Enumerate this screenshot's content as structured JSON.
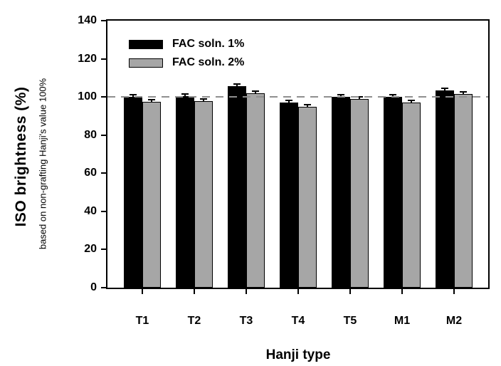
{
  "chart_data": {
    "type": "bar",
    "title": "",
    "xlabel": "Hanji type",
    "ylabel": "ISO brightness (%)",
    "ylabel_sub": "based on non-grafting Hanji's value 100%",
    "categories": [
      "T1",
      "T2",
      "T3",
      "T4",
      "T5",
      "M1",
      "M2"
    ],
    "series": [
      {
        "name": "FAC soln. 1%",
        "color": "#000000",
        "values": [
          100,
          100.5,
          105.5,
          97,
          100,
          100,
          103.5
        ]
      },
      {
        "name": "FAC soln. 2%",
        "color": "#a6a6a6",
        "values": [
          97.5,
          98,
          102,
          95,
          99,
          97,
          101.5
        ]
      }
    ],
    "error_bar_units": 0.5,
    "ylim": [
      0,
      140
    ],
    "ytick_step": 20,
    "yticks": [
      0,
      20,
      40,
      60,
      80,
      100,
      120,
      140
    ],
    "reference_line": {
      "value": 100,
      "style": "dashed",
      "color": "#8f8f8f"
    },
    "legend_position": "upper-left",
    "grid": false,
    "axis_color": "#000000",
    "background": "#ffffff"
  }
}
